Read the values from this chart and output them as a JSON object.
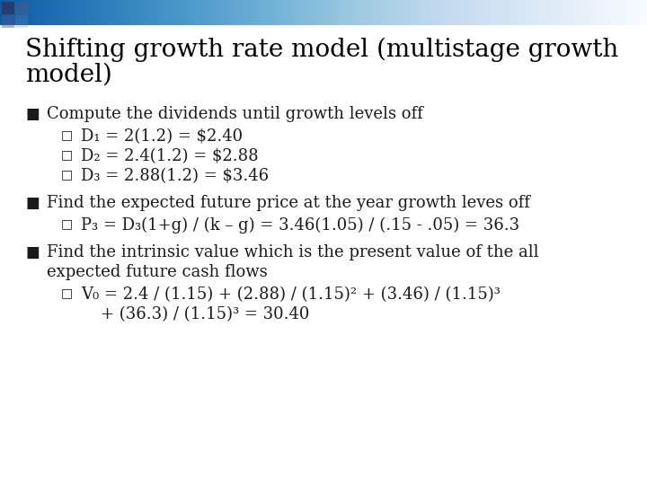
{
  "title_line1": "Shifting growth rate model (multistage growth",
  "title_line2": "model)",
  "background_color": "#ffffff",
  "title_color": "#000000",
  "title_fontsize": 20,
  "body_fontsize": 13,
  "bullet_color": "#1a1a1a",
  "bullets": [
    {
      "text": "Compute the dividends until growth levels off",
      "sub": [
        "D₁ = 2(1.2) = $2.40",
        "D₂ = 2.4(1.2) = $2.88",
        "D₃ = 2.88(1.2) = $3.46"
      ]
    },
    {
      "text": "Find the expected future price at the year growth leves off",
      "sub": [
        "P₃ = D₃(1+g) / (k – g) = 3.46(1.05) / (.15 - .05) = 36.3"
      ]
    },
    {
      "text_line1": "Find the intrinsic value which is the present value of the all",
      "text_line2": "expected future cash flows",
      "sub": [
        "V₀ = 2.4 / (1.15) + (2.88) / (1.15)² + (3.46) / (1.15)³",
        "    + (36.3) / (1.15)³ = 30.40"
      ]
    }
  ]
}
